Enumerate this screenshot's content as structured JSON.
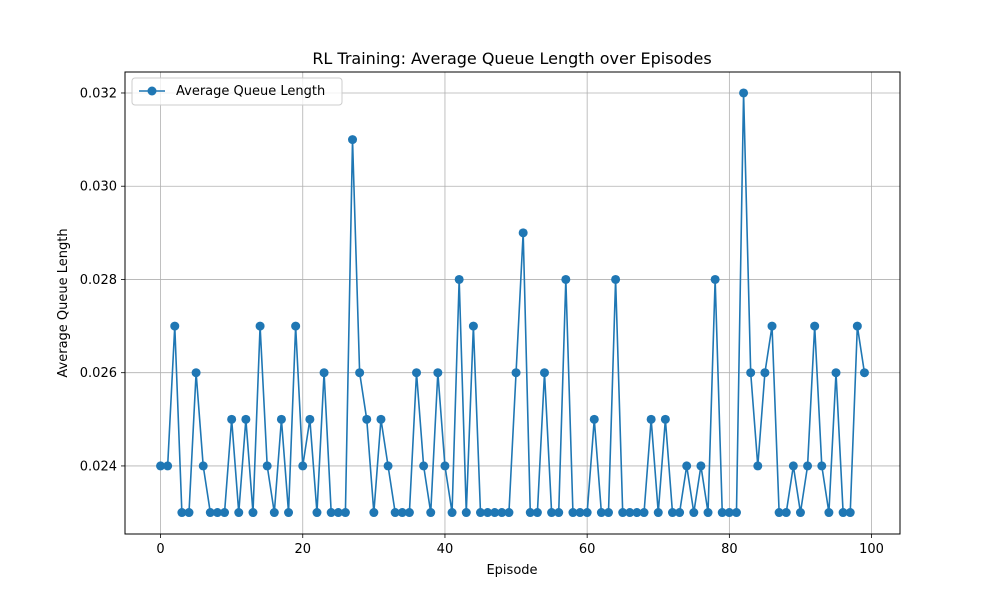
{
  "chart_data": {
    "type": "line",
    "title": "RL Training: Average Queue Length over Episodes",
    "xlabel": "Episode",
    "ylabel": "Average Queue Length",
    "xlim": [
      -5,
      104
    ],
    "ylim": [
      0.02254,
      0.03245
    ],
    "xticks": [
      0,
      20,
      40,
      60,
      80,
      100
    ],
    "xtick_labels": [
      "0",
      "20",
      "40",
      "60",
      "80",
      "100"
    ],
    "yticks": [
      0.024,
      0.026,
      0.028,
      0.03,
      0.032
    ],
    "ytick_labels": [
      "0.024",
      "0.026",
      "0.028",
      "0.030",
      "0.032"
    ],
    "grid": true,
    "legend_position": "top-left",
    "series": [
      {
        "name": "Average Queue Length",
        "color": "#1f77b4",
        "marker": "circle",
        "x": [
          0,
          1,
          2,
          3,
          4,
          5,
          6,
          7,
          8,
          9,
          10,
          11,
          12,
          13,
          14,
          15,
          16,
          17,
          18,
          19,
          20,
          21,
          22,
          23,
          24,
          25,
          26,
          27,
          28,
          29,
          30,
          31,
          32,
          33,
          34,
          35,
          36,
          37,
          38,
          39,
          40,
          41,
          42,
          43,
          44,
          45,
          46,
          47,
          48,
          49,
          50,
          51,
          52,
          53,
          54,
          55,
          56,
          57,
          58,
          59,
          60,
          61,
          62,
          63,
          64,
          65,
          66,
          67,
          68,
          69,
          70,
          71,
          72,
          73,
          74,
          75,
          76,
          77,
          78,
          79,
          80,
          81,
          82,
          83,
          84,
          85,
          86,
          87,
          88,
          89,
          90,
          91,
          92,
          93,
          94,
          95,
          96,
          97,
          98,
          99
        ],
        "values": [
          0.024,
          0.024,
          0.027,
          0.023,
          0.023,
          0.026,
          0.024,
          0.023,
          0.023,
          0.023,
          0.025,
          0.023,
          0.025,
          0.023,
          0.027,
          0.024,
          0.023,
          0.025,
          0.023,
          0.027,
          0.024,
          0.025,
          0.023,
          0.026,
          0.023,
          0.023,
          0.023,
          0.031,
          0.026,
          0.025,
          0.023,
          0.025,
          0.024,
          0.023,
          0.023,
          0.023,
          0.026,
          0.024,
          0.023,
          0.026,
          0.024,
          0.023,
          0.028,
          0.023,
          0.027,
          0.023,
          0.023,
          0.023,
          0.023,
          0.023,
          0.026,
          0.029,
          0.023,
          0.023,
          0.026,
          0.023,
          0.023,
          0.028,
          0.023,
          0.023,
          0.023,
          0.025,
          0.023,
          0.023,
          0.028,
          0.023,
          0.023,
          0.023,
          0.023,
          0.025,
          0.023,
          0.025,
          0.023,
          0.023,
          0.024,
          0.023,
          0.024,
          0.023,
          0.028,
          0.023,
          0.023,
          0.023,
          0.032,
          0.026,
          0.024,
          0.026,
          0.027,
          0.023,
          0.023,
          0.024,
          0.023,
          0.024,
          0.027,
          0.024,
          0.023,
          0.026,
          0.023,
          0.023,
          0.027,
          0.026
        ]
      }
    ]
  }
}
